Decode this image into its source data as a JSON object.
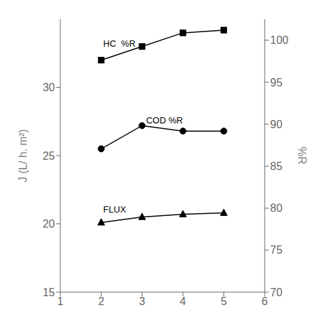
{
  "chart_data": {
    "type": "line",
    "x": [
      2,
      3,
      4,
      5
    ],
    "series": [
      {
        "values": [
          20.1,
          20.5,
          20.7,
          20.8
        ],
        "color": "black",
        "marker": "triangle",
        "line_style": "solid"
      },
      {
        "values": [
          25.5,
          27.2,
          26.8,
          26.8
        ],
        "color": "black",
        "marker": "circle",
        "line_style": "solid"
      },
      {
        "values": [
          32.0,
          33.0,
          34.0,
          34.2
        ],
        "color": "black",
        "marker": "square",
        "line_style": "solid"
      }
    ],
    "xlim": [
      1,
      6
    ],
    "xticks": [
      1,
      2,
      3,
      4,
      5,
      6
    ],
    "ylim": [
      15,
      35
    ],
    "yticks": [
      15,
      20,
      25,
      30
    ],
    "y2lim": [
      70,
      102.5
    ],
    "y2ticks": [
      70,
      75,
      80,
      85,
      90,
      95,
      100
    ],
    "ylabel": "J (L/ h. m²)",
    "y2label": "%R",
    "grid": false,
    "annotations": [
      {
        "text": "HC  %R",
        "x": 2.05,
        "y": 33.0
      },
      {
        "text": "COD %R",
        "x": 3.1,
        "y": 27.35
      },
      {
        "text": "FLUX",
        "x": 2.05,
        "y": 20.85
      }
    ]
  }
}
